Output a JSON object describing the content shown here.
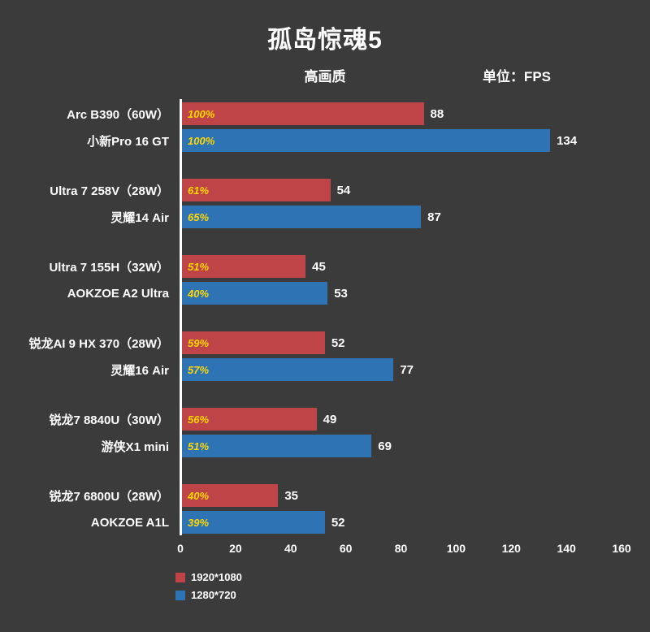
{
  "title": "孤岛惊魂5",
  "subtitle": "高画质",
  "unit_label": "单位：FPS",
  "colors": {
    "bar_1080p": "#bf4447",
    "bar_720p": "#2e74b5",
    "percent_text": "#ffd700",
    "background": "#3b3b3b",
    "axis": "#ffffff"
  },
  "legend": [
    {
      "label": "1920*1080",
      "color": "#bf4447"
    },
    {
      "label": "1280*720",
      "color": "#2e74b5"
    }
  ],
  "chart_data": {
    "type": "bar",
    "orientation": "horizontal",
    "title": "孤岛惊魂5",
    "subtitle": "高画质",
    "unit": "FPS",
    "xlim": [
      0,
      160
    ],
    "xticks": [
      0,
      20,
      40,
      60,
      80,
      100,
      120,
      140,
      160
    ],
    "series_names": [
      "1920*1080",
      "1280*720"
    ],
    "groups": [
      {
        "label_line1": "Arc B390（60W）",
        "label_line2": "小新Pro 16 GT",
        "bars": [
          {
            "series": "1920*1080",
            "value": 88,
            "percent": "100%"
          },
          {
            "series": "1280*720",
            "value": 134,
            "percent": "100%"
          }
        ]
      },
      {
        "label_line1": "Ultra 7 258V（28W）",
        "label_line2": "灵耀14 Air",
        "bars": [
          {
            "series": "1920*1080",
            "value": 54,
            "percent": "61%"
          },
          {
            "series": "1280*720",
            "value": 87,
            "percent": "65%"
          }
        ]
      },
      {
        "label_line1": "Ultra 7 155H（32W）",
        "label_line2": "AOKZOE A2 Ultra",
        "bars": [
          {
            "series": "1920*1080",
            "value": 45,
            "percent": "51%"
          },
          {
            "series": "1280*720",
            "value": 53,
            "percent": "40%"
          }
        ]
      },
      {
        "label_line1": "锐龙AI 9 HX 370（28W）",
        "label_line2": "灵耀16 Air",
        "bars": [
          {
            "series": "1920*1080",
            "value": 52,
            "percent": "59%"
          },
          {
            "series": "1280*720",
            "value": 77,
            "percent": "57%"
          }
        ]
      },
      {
        "label_line1": "锐龙7 8840U（30W）",
        "label_line2": "游侠X1 mini",
        "bars": [
          {
            "series": "1920*1080",
            "value": 49,
            "percent": "56%"
          },
          {
            "series": "1280*720",
            "value": 69,
            "percent": "51%"
          }
        ]
      },
      {
        "label_line1": "锐龙7 6800U（28W）",
        "label_line2": "AOKZOE A1L",
        "bars": [
          {
            "series": "1920*1080",
            "value": 35,
            "percent": "40%"
          },
          {
            "series": "1280*720",
            "value": 52,
            "percent": "39%"
          }
        ]
      }
    ]
  }
}
